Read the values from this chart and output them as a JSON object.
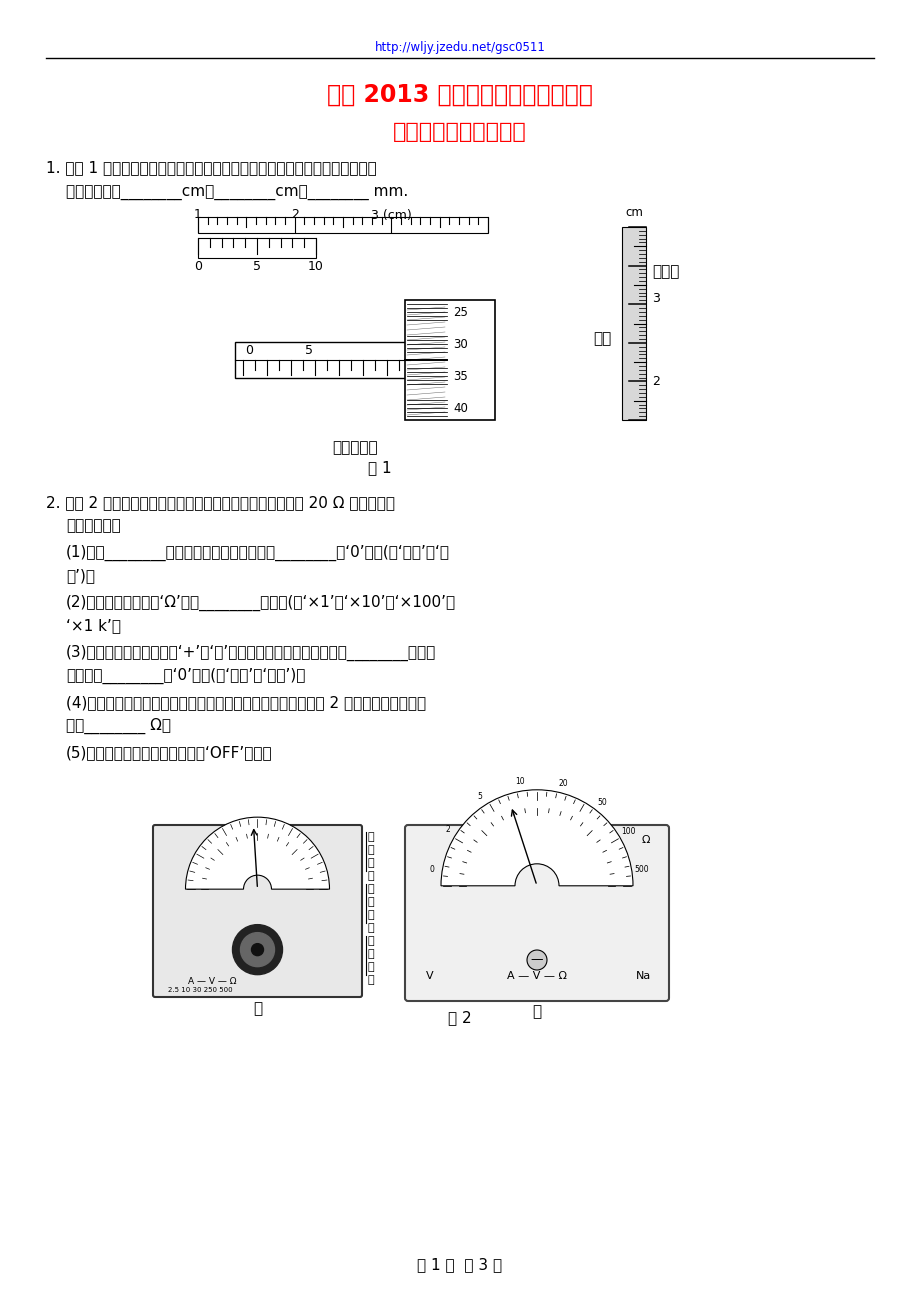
{
  "bg_color": "#ffffff",
  "url_text": "http://wljy.jzedu.net/gsc0511",
  "title1": "河北 2013 年高考二轮复习考点综述",
  "title2": "基本仪器的读数及使用",
  "q1_text1": "1. 如图 1 所示，用游标卡尺和刻度尺和螺旋测微器分别测量三个工件的长度，",
  "q1_text2": "测量值分别为________cm、________cm、________ mm.",
  "fig1_label": "图 1",
  "micrometer_label": "螺旋测微器",
  "ruler_label": "刻度尺",
  "q2_intro": "2. 如图 2 甲为多用电表的示意图，现用它测量一个阻值约为 20 Ω 的电阻，测",
  "q2_text1": "量步骤如下：",
  "q2_step1": "(1)调节________，使电表指针停在指针对准________的‘0’刻线(填‘电阻’或‘电",
  "q2_step1b": "流’)．",
  "q2_step2": "(2)将选择开关旋转到‘Ω’挡的________位置．(填‘×1’、‘×10’、‘×100’或",
  "q2_step2b": "‘×1 k’）",
  "q2_step3": "(3)将红、黑表笔分别插入‘+’、‘－’插孔，并将两表笔短接，调节________，使表",
  "q2_step3b": "指针对准________的‘0’刻线(填‘电阻’或‘电流’)．",
  "q2_step4": "(4)将红、黑表笔分别与待测电阻两端相接触，若电表读数如图 2 乙所示，该电阻的阻",
  "q2_step4b": "值为________ Ω．",
  "q2_step5": "(5)测量完毕，将选择开关旋转到‘OFF’位置．",
  "fig2_label": "图 2",
  "fig2_sublabel_left": "甲",
  "fig2_sublabel_right": "乙",
  "page_footer": "第 1 页  共 3 页",
  "gong_jian_label": "工件",
  "side_text_lines": [
    "调",
    "零",
    "螺",
    "丝",
    "调",
    "零",
    "旋",
    "钮",
    "选",
    "择",
    "开",
    "关"
  ]
}
